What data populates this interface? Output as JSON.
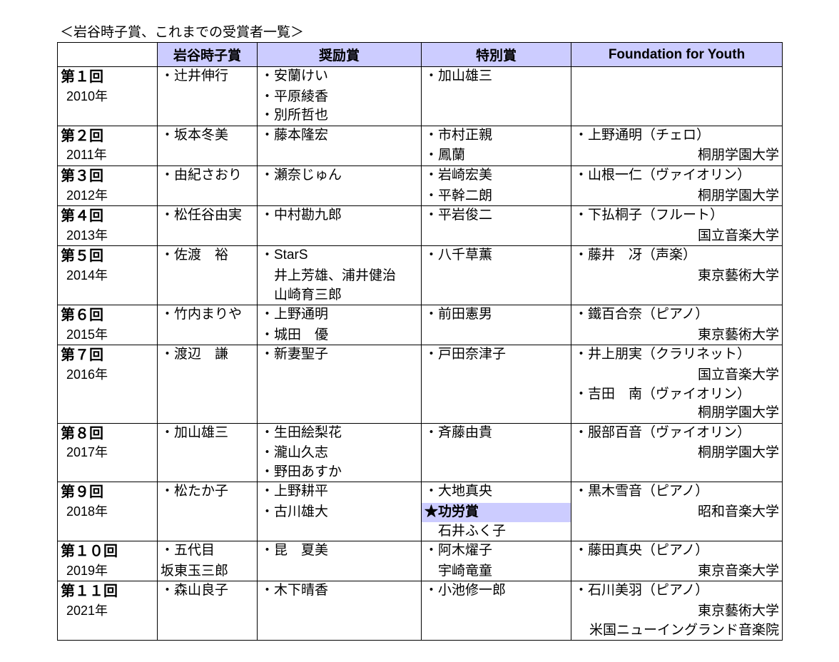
{
  "caption": "＜岩谷時子賞、これまでの受賞者一覧＞",
  "columns": [
    "",
    "岩谷時子賞",
    "奨励賞",
    "特別賞",
    "Foundation for Youth"
  ],
  "col_widths": [
    "140px",
    "140px",
    "230px",
    "210px",
    "296px"
  ],
  "header_bg": "#ccccff",
  "highlight_bg": "#ccccff",
  "border_color": "#000000",
  "rows": [
    {
      "edition": "第１回",
      "year": "2010年",
      "main": [
        "・辻井伸行"
      ],
      "encouragement": [
        "・安蘭けい",
        "・平原綾香",
        "・別所哲也"
      ],
      "special": [
        "・加山雄三"
      ],
      "youth": []
    },
    {
      "edition": "第２回",
      "year": "2011年",
      "main": [
        "・坂本冬美"
      ],
      "encouragement": [
        "・藤本隆宏"
      ],
      "special": [
        "・市村正親",
        "・鳳蘭"
      ],
      "youth": [
        {
          "l": "・上野通明（チェロ）"
        },
        {
          "r": "桐朋学園大学"
        }
      ]
    },
    {
      "edition": "第３回",
      "year": "2012年",
      "main": [
        "・由紀さおり"
      ],
      "encouragement": [
        "・瀬奈じゅん"
      ],
      "special": [
        "・岩崎宏美",
        "・平幹二朗"
      ],
      "youth": [
        {
          "l": "・山根一仁（ヴァイオリン）"
        },
        {
          "r": "桐朋学園大学"
        }
      ]
    },
    {
      "edition": "第４回",
      "year": "2013年",
      "main": [
        "・松任谷由実"
      ],
      "encouragement": [
        "・中村勘九郎"
      ],
      "special": [
        "・平岩俊二"
      ],
      "youth": [
        {
          "l": "・下払桐子（フルート）"
        },
        {
          "r": "国立音楽大学"
        }
      ]
    },
    {
      "edition": "第５回",
      "year": "2014年",
      "main": [
        "・佐渡　裕"
      ],
      "encouragement": [
        "・StarS",
        "　井上芳雄、浦井健治",
        "　山崎育三郎"
      ],
      "special": [
        "・八千草薫"
      ],
      "youth": [
        {
          "l": "・藤井　冴（声楽）"
        },
        {
          "r": "東京藝術大学"
        }
      ]
    },
    {
      "edition": "第６回",
      "year": "2015年",
      "main": [
        "・竹内まりや"
      ],
      "encouragement": [
        "・上野通明",
        "・城田　優"
      ],
      "special": [
        "・前田憲男"
      ],
      "youth": [
        {
          "l": "・鐵百合奈（ピアノ）"
        },
        {
          "r": "東京藝術大学"
        }
      ]
    },
    {
      "edition": "第７回",
      "year": "2016年",
      "main": [
        "・渡辺　謙"
      ],
      "encouragement": [
        "・新妻聖子"
      ],
      "special": [
        "・戸田奈津子"
      ],
      "youth": [
        {
          "l": "・井上朋実（クラリネット）"
        },
        {
          "r": "国立音楽大学"
        },
        {
          "l": "・吉田　南（ヴァイオリン）"
        },
        {
          "r": "桐朋学園大学"
        }
      ]
    },
    {
      "edition": "第８回",
      "year": "2017年",
      "main": [
        "・加山雄三"
      ],
      "encouragement": [
        "・生田絵梨花",
        "・瀧山久志",
        "・野田あすか"
      ],
      "special": [
        "・斉藤由貴"
      ],
      "youth": [
        {
          "l": "・服部百音（ヴァイオリン）"
        },
        {
          "r": "桐朋学園大学"
        }
      ]
    },
    {
      "edition": "第９回",
      "year": "2018年",
      "main": [
        "・松たか子"
      ],
      "encouragement": [
        "・上野耕平",
        "・古川雄大"
      ],
      "special": [
        "・大地真央",
        {
          "hl": "★功労賞"
        },
        "　石井ふく子"
      ],
      "youth": [
        {
          "l": "・黒木雪音（ピアノ）"
        },
        {
          "r": "昭和音楽大学"
        }
      ]
    },
    {
      "edition": "第１０回",
      "year": "2019年",
      "main": [
        "・五代目",
        "坂東玉三郎"
      ],
      "encouragement": [
        "・昆　夏美"
      ],
      "special": [
        "・阿木燿子",
        "　宇崎竜童"
      ],
      "youth": [
        {
          "l": "・藤田真央（ピアノ）"
        },
        {
          "r": "東京音楽大学"
        }
      ]
    },
    {
      "edition": "第１１回",
      "year": "2021年",
      "main": [
        "・森山良子"
      ],
      "encouragement": [
        "・木下晴香"
      ],
      "special": [
        "・小池修一郎"
      ],
      "youth": [
        {
          "l": "・石川美羽（ピアノ）"
        },
        {
          "r": "東京藝術大学"
        },
        {
          "r": "米国ニューイングランド音楽院"
        }
      ]
    }
  ]
}
